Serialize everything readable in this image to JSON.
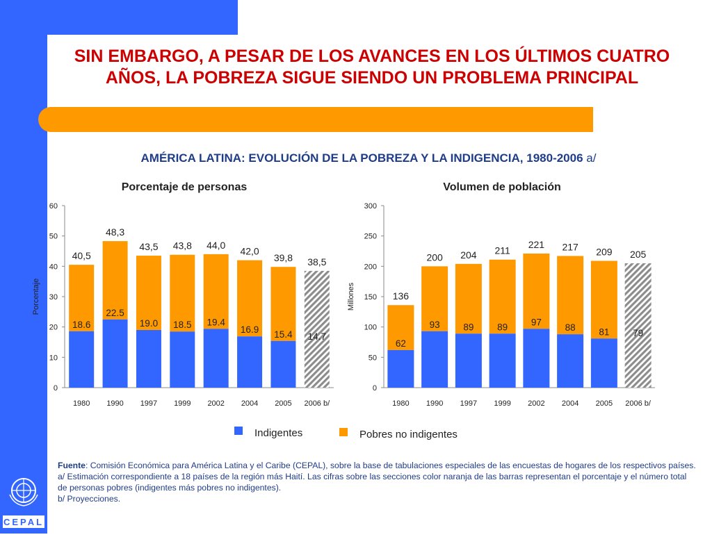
{
  "title": "SIN EMBARGO, A PESAR DE LOS AVANCES EN LOS ÚLTIMOS CUATRO AÑOS, LA POBREZA SIGUE SIENDO UN PROBLEMA PRINCIPAL",
  "subtitle": "AMÉRICA LATINA: EVOLUCIÓN DE LA POBREZA Y LA INDIGENCIA, 1980-2006",
  "subtitle_suffix": "a/",
  "colors": {
    "indigentes": "#3366ff",
    "pobres": "#ff9900",
    "title": "#cc0000",
    "subtitle": "#1f3c88"
  },
  "legend": {
    "indigentes": "Indigentes",
    "pobres": "Pobres no indigentes"
  },
  "notes": {
    "source_label": "Fuente",
    "source_text": ": Comisión Económica para América Latina y el Caribe (CEPAL), sobre la base de tabulaciones especiales de las encuestas de hogares de los respectivos países.",
    "note_a": "a/ Estimación correspondiente a 18 países de la región más Haití. Las cifras sobre las secciones color naranja de las barras representan el porcentaje y el número total de personas pobres (indigentes más pobres no indigentes).",
    "note_b": "b/ Proyecciones."
  },
  "logo_text": "CEPAL",
  "chart_data": [
    {
      "type": "bar",
      "stacked": true,
      "title": "Porcentaje de personas",
      "ylabel": "Porcentaje",
      "xlabel": "",
      "ylim": [
        0,
        60
      ],
      "yticks": [
        0,
        10,
        20,
        30,
        40,
        50,
        60
      ],
      "categories": [
        "1980",
        "1990",
        "1997",
        "1999",
        "2002",
        "2004",
        "2005",
        "2006 b/"
      ],
      "series": [
        {
          "name": "Indigentes",
          "values": [
            18.6,
            22.5,
            19.0,
            18.5,
            19.4,
            16.9,
            15.4,
            14.7
          ],
          "labels": [
            "18.6",
            "22.5",
            "19.0",
            "18.5",
            "19.4",
            "16.9",
            "15.4",
            "14.7"
          ]
        },
        {
          "name": "Pobres no indigentes",
          "values": [
            21.9,
            25.8,
            24.5,
            25.3,
            24.6,
            25.1,
            24.4,
            23.8
          ]
        }
      ],
      "totals": [
        40.5,
        48.3,
        43.5,
        43.8,
        44.0,
        42.0,
        39.8,
        38.5
      ],
      "total_labels": [
        "40,5",
        "48,3",
        "43,5",
        "43,8",
        "44,0",
        "42,0",
        "39,8",
        "38,5"
      ],
      "projected_last": true
    },
    {
      "type": "bar",
      "stacked": true,
      "title": "Volumen de población",
      "ylabel": "Millones",
      "xlabel": "",
      "ylim": [
        0,
        300
      ],
      "yticks": [
        0,
        50,
        100,
        150,
        200,
        250,
        300
      ],
      "categories": [
        "1980",
        "1990",
        "1997",
        "1999",
        "2002",
        "2004",
        "2005",
        "2006 b/"
      ],
      "series": [
        {
          "name": "Indigentes",
          "values": [
            62,
            93,
            89,
            89,
            97,
            88,
            81,
            79
          ],
          "labels": [
            "62",
            "93",
            "89",
            "89",
            "97",
            "88",
            "81",
            "79"
          ]
        },
        {
          "name": "Pobres no indigentes",
          "values": [
            74,
            107,
            115,
            122,
            124,
            129,
            128,
            126
          ]
        }
      ],
      "totals": [
        136,
        200,
        204,
        211,
        221,
        217,
        209,
        205
      ],
      "total_labels": [
        "136",
        "200",
        "204",
        "211",
        "221",
        "217",
        "209",
        "205"
      ],
      "projected_last": true
    }
  ]
}
